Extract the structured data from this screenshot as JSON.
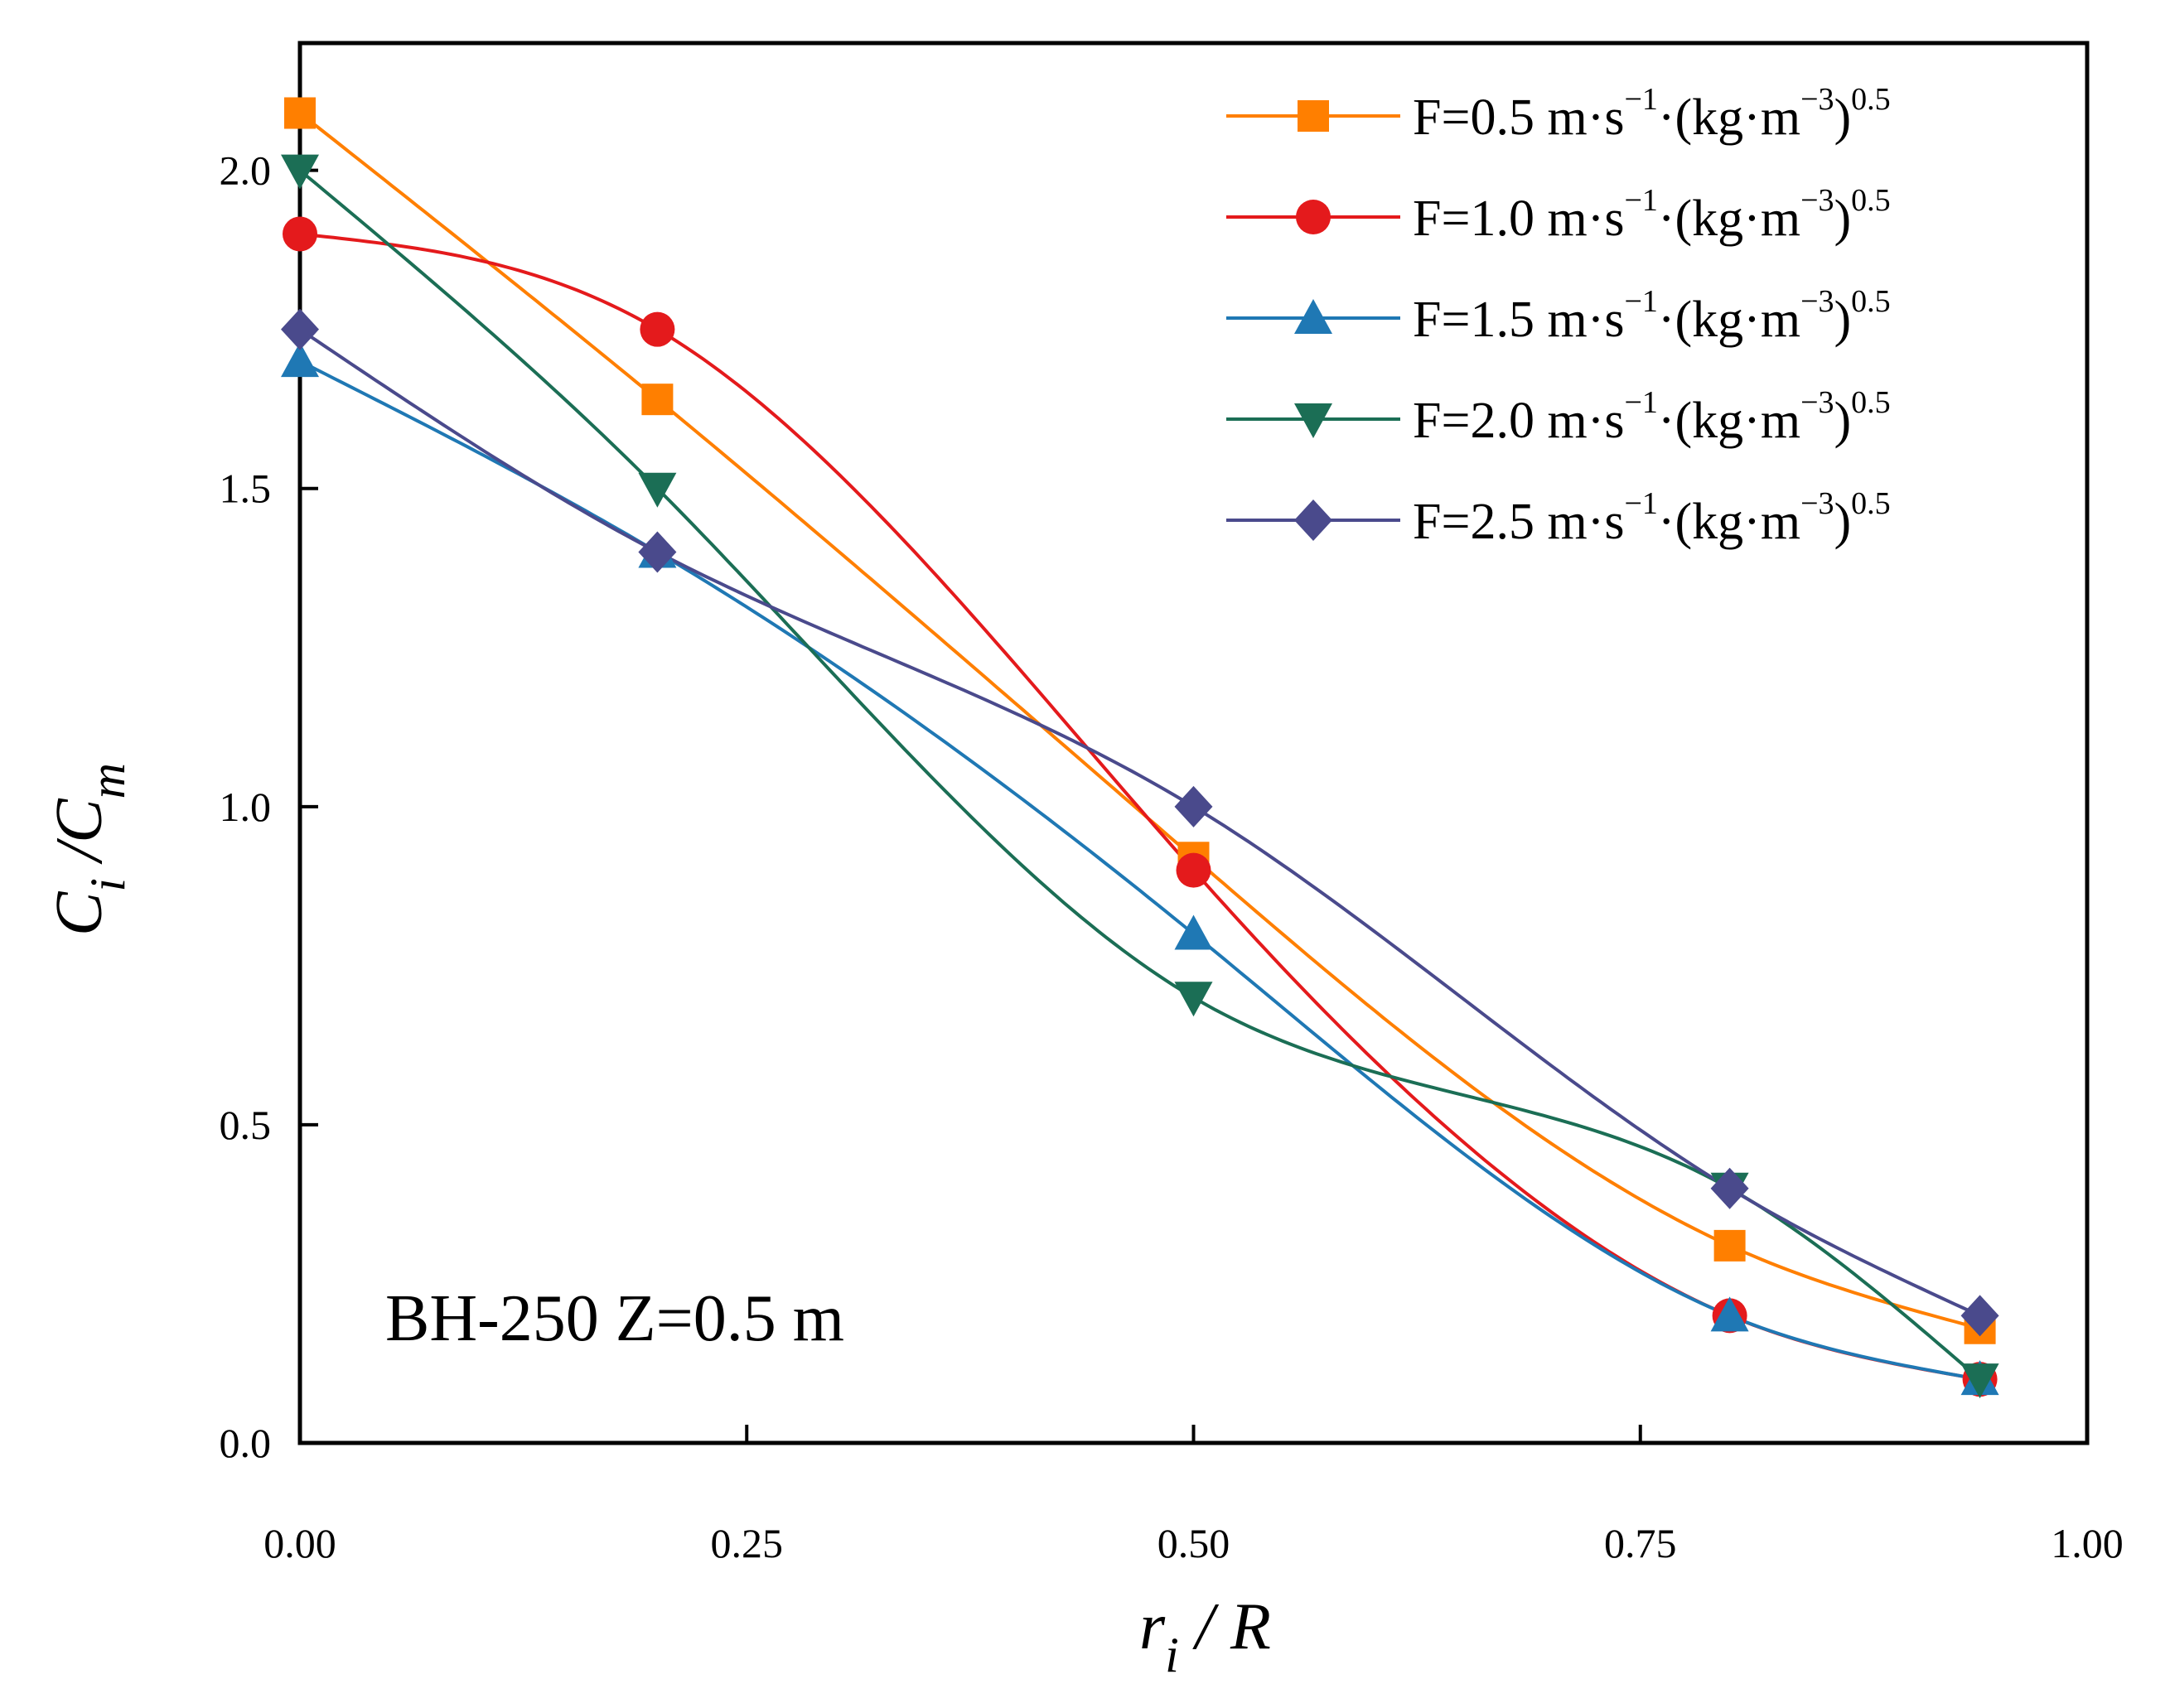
{
  "chart_data": {
    "type": "line",
    "xlabel": {
      "main": "r",
      "sub": "i",
      "rest": " / R"
    },
    "ylabel": {
      "main": "C",
      "sub": "i",
      "mid": " /C",
      "sub2": "m"
    },
    "xlim": [
      0,
      1.0
    ],
    "ylim": [
      0,
      2.2
    ],
    "x_ticks": [
      "0.00",
      "0.25",
      "0.50",
      "0.75",
      "1.00"
    ],
    "y_ticks": [
      "0.0",
      "0.5",
      "1.0",
      "1.5",
      "2.0"
    ],
    "x": [
      0.0,
      0.2,
      0.5,
      0.8,
      0.94
    ],
    "grid": false,
    "legend_position": "top-right",
    "annotation": "BH-250  Z=0.5 m",
    "series": [
      {
        "name": "F=0.5 m·s",
        "sup1": "−1",
        "mid": "·(kg·m",
        "sup2": "−3",
        "close": ")",
        "sup3": "0.5",
        "color": "#ff7f00",
        "marker": "square",
        "values": [
          2.09,
          1.64,
          0.92,
          0.31,
          0.18
        ]
      },
      {
        "name": "F=1.0 m·s",
        "sup1": "−1",
        "mid": "·(kg·m",
        "sup2": "−3",
        "close": ")",
        "sup3": "0.5",
        "color": "#e41a1c",
        "marker": "circle",
        "values": [
          1.9,
          1.75,
          0.9,
          0.2,
          0.1
        ]
      },
      {
        "name": "F=1.5 m·s",
        "sup1": "−1",
        "mid": "·(kg·m",
        "sup2": "−3",
        "close": ")",
        "sup3": "0.5",
        "color": "#1f78b4",
        "marker": "triangle-up",
        "values": [
          1.7,
          1.4,
          0.8,
          0.2,
          0.1
        ]
      },
      {
        "name": "F=2.0 m·s",
        "sup1": "−1",
        "mid": "·(kg·m",
        "sup2": "−3",
        "close": ")",
        "sup3": "0.5",
        "color": "#1b6e55",
        "marker": "triangle-down",
        "values": [
          2.0,
          1.5,
          0.7,
          0.4,
          0.1
        ]
      },
      {
        "name": "F=2.5 m·s",
        "sup1": "−1",
        "mid": "·(kg·m",
        "sup2": "−3",
        "close": ")",
        "sup3": "0.5",
        "color": "#4a4a8c",
        "marker": "diamond",
        "values": [
          1.75,
          1.4,
          1.0,
          0.4,
          0.2
        ]
      }
    ]
  }
}
